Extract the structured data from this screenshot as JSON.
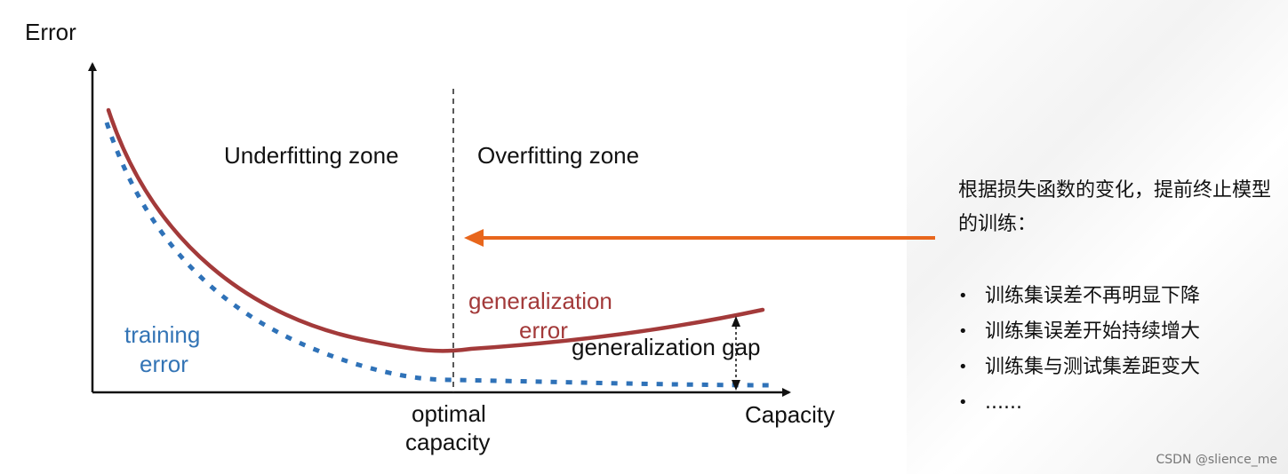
{
  "diagram": {
    "y_axis_label": "Error",
    "x_axis_label": "Capacity",
    "underfitting_label": "Underfitting zone",
    "overfitting_label": "Overfitting zone",
    "gen_error_line1": "generalization",
    "gen_error_line2": "error",
    "training_error_line1": "training",
    "training_error_line2": "error",
    "gap_label": "generalization gap",
    "optimal_line1": "optimal",
    "optimal_line2": "capacity",
    "colors": {
      "generalization_error": "#a33a3a",
      "training_error": "#2f72b8",
      "arrow": "#e8661c"
    }
  },
  "notes": {
    "title": "根据损失函数的变化，提前终止模型的训练：",
    "items": [
      "训练集误差不再明显下降",
      "训练集误差开始持续增大",
      "训练集与测试集差距变大",
      "......"
    ]
  },
  "watermark": "CSDN @slience_me"
}
